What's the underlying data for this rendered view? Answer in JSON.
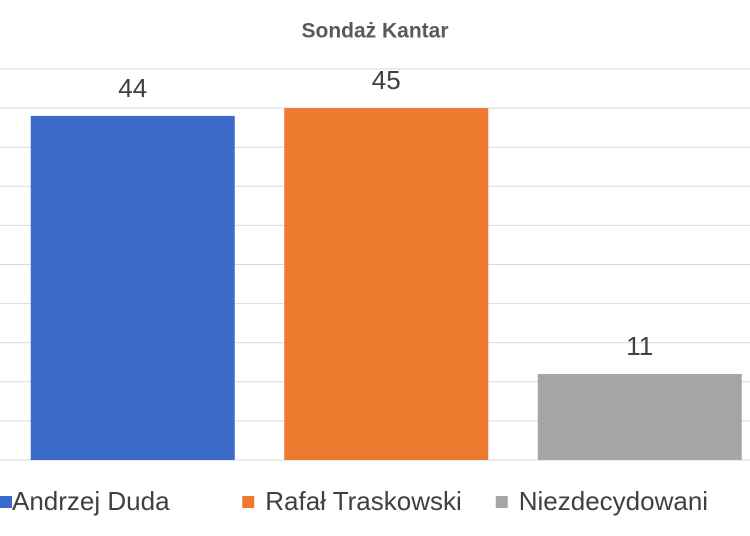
{
  "chart_data": {
    "type": "bar",
    "title": "Sondaż Kantar",
    "categories": [
      "Andrzej Duda",
      "Rafał Traskowski",
      "Niezdecydowani"
    ],
    "values": [
      44,
      45,
      11
    ],
    "colors": [
      "#3a6bc8",
      "#ed7a2e",
      "#a5a5a5"
    ],
    "ylim": [
      0,
      50
    ],
    "yticks": [
      0,
      5,
      10,
      15,
      20,
      25,
      30,
      35,
      40,
      45,
      50
    ],
    "grid": true,
    "legend": "bottom"
  }
}
